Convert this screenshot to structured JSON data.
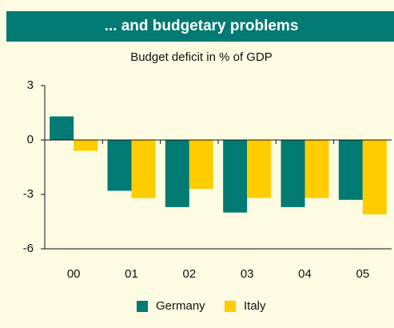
{
  "chart_data": {
    "type": "bar",
    "title": "... and budgetary problems",
    "subtitle": "Budget deficit in % of GDP",
    "categories": [
      "00",
      "01",
      "02",
      "03",
      "04",
      "05"
    ],
    "series": [
      {
        "name": "Germany",
        "color": "#007a72",
        "values": [
          1.3,
          -2.8,
          -3.7,
          -4.0,
          -3.7,
          -3.3
        ]
      },
      {
        "name": "Italy",
        "color": "#ffcc00",
        "values": [
          -0.6,
          -3.2,
          -2.7,
          -3.2,
          -3.2,
          -4.1
        ]
      }
    ],
    "ylim": [
      -6,
      3
    ],
    "yticks": [
      -6,
      -3,
      0,
      3
    ],
    "legend": "bottom"
  }
}
